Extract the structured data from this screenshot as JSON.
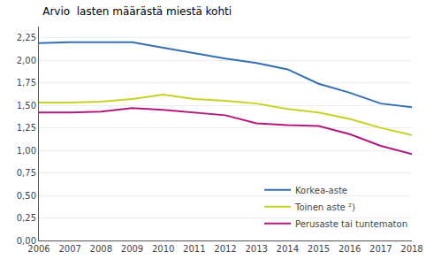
{
  "chart_data": {
    "type": "line",
    "title": "Arvio  lasten määrästä miestä kohti",
    "x": [
      2006,
      2007,
      2008,
      2009,
      2010,
      2011,
      2012,
      2013,
      2014,
      2015,
      2016,
      2017,
      2018
    ],
    "xlim": [
      2006,
      2018
    ],
    "xticks": [
      2006,
      2007,
      2008,
      2009,
      2010,
      2011,
      2012,
      2013,
      2014,
      2015,
      2016,
      2017,
      2018
    ],
    "ylim": [
      0.0,
      2.375
    ],
    "yticks": [
      {
        "value": 0.0,
        "label": "0,00"
      },
      {
        "value": 0.25,
        "label": "0,25"
      },
      {
        "value": 0.5,
        "label": "0,50"
      },
      {
        "value": 0.75,
        "label": "0,75"
      },
      {
        "value": 1.0,
        "label": "1,00"
      },
      {
        "value": 1.25,
        "label": "1,25"
      },
      {
        "value": 1.5,
        "label": "1,50"
      },
      {
        "value": 1.75,
        "label": "1,75"
      },
      {
        "value": 2.0,
        "label": "2,00"
      },
      {
        "value": 2.25,
        "label": "2,25"
      }
    ],
    "series": [
      {
        "name": "Korkea-aste",
        "color": "#3470b2",
        "values": [
          2.19,
          2.2,
          2.2,
          2.2,
          2.14,
          2.08,
          2.02,
          1.97,
          1.9,
          1.74,
          1.64,
          1.52,
          1.48
        ]
      },
      {
        "name": "Toinen aste ²)",
        "color": "#c7d122",
        "values": [
          1.53,
          1.53,
          1.54,
          1.57,
          1.62,
          1.57,
          1.55,
          1.52,
          1.46,
          1.42,
          1.35,
          1.25,
          1.17
        ]
      },
      {
        "name": "Perusaste tai tuntematon",
        "color": "#b0187e",
        "values": [
          1.42,
          1.42,
          1.43,
          1.47,
          1.45,
          1.42,
          1.39,
          1.3,
          1.28,
          1.27,
          1.18,
          1.05,
          0.96
        ]
      }
    ],
    "grid": true,
    "legend": "lower right"
  }
}
